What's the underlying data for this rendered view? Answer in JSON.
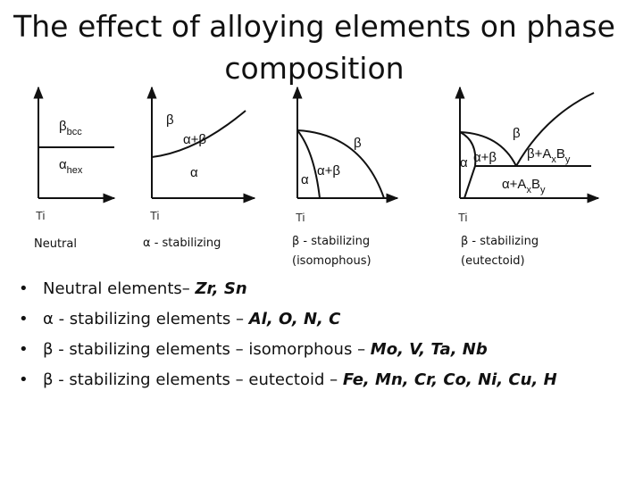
{
  "title": "The effect of alloying elements on phase composition",
  "diagrams": [
    {
      "axis_label": "Ti",
      "caption": [
        "Neutral"
      ],
      "phases": [
        [
          "β",
          "bcc"
        ],
        [
          "α",
          "hex"
        ]
      ]
    },
    {
      "axis_label": "Ti",
      "caption": [
        "α - stabilizing"
      ],
      "phases": [
        [
          "β"
        ],
        [
          "α+β"
        ],
        [
          "α"
        ]
      ]
    },
    {
      "axis_label": "Ti",
      "caption": [
        "β - stabilizing",
        "(isomophous)"
      ],
      "phases": [
        [
          "β"
        ],
        [
          "α+β"
        ],
        [
          "α"
        ]
      ]
    },
    {
      "axis_label": "Ti",
      "caption": [
        "β - stabilizing",
        "(eutectoid)"
      ],
      "phases": [
        [
          "β"
        ],
        [
          "α"
        ],
        [
          "α+β"
        ],
        [
          "β+A",
          "x",
          "B",
          "y"
        ],
        [
          "α+A",
          "x",
          "B",
          "y"
        ]
      ]
    }
  ],
  "bullets": [
    {
      "text": "Neutral elements– ",
      "elements": "Zr, Sn"
    },
    {
      "text": "α - stabilizing elements – ",
      "elements": "Al, O, N, C"
    },
    {
      "text": "β - stabilizing elements – isomorphous – ",
      "elements": "Mo, V, Ta, Nb"
    },
    {
      "text": "β - stabilizing elements – eutectoid – ",
      "elements": "Fe, Mn, Cr, Co, Ni, Cu, H"
    }
  ]
}
